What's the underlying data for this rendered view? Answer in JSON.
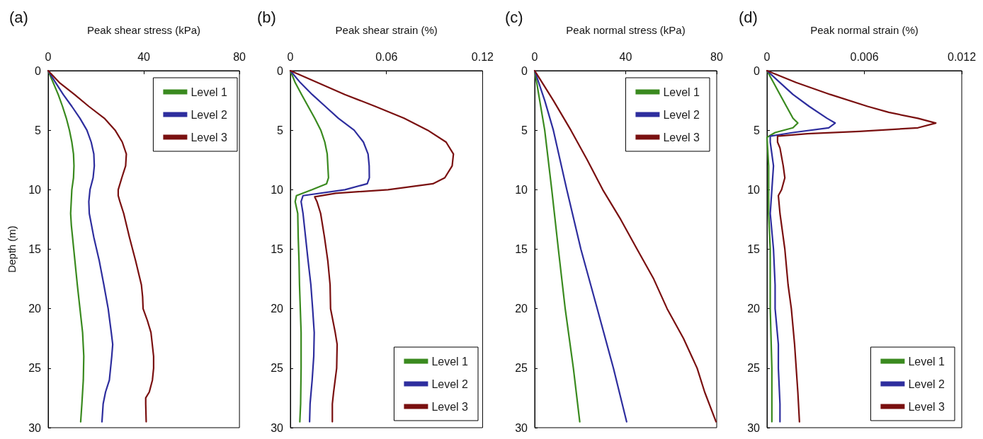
{
  "chart_data": [
    {
      "type": "line",
      "title": "(a)",
      "xlabel": "Peak shear stress (kPa)",
      "ylabel": "Depth (m)",
      "xlim": [
        0,
        80
      ],
      "xticks": [
        0,
        40,
        80
      ],
      "ylim": [
        30,
        0
      ],
      "yticks": [
        0,
        5,
        10,
        15,
        20,
        25,
        30
      ],
      "legend": "top right",
      "grid": false,
      "marker": "none",
      "series": [
        {
          "name": "Level 1",
          "color": "#3a8a1f",
          "x": [
            0,
            2.1,
            4.2,
            6,
            7.6,
            8.9,
            9.9,
            10.6,
            10.8,
            10.6,
            9.9,
            9.4,
            9.7,
            10.2,
            11.2,
            12.2,
            13.3,
            14.4,
            14.9,
            14.7,
            14.1,
            13.6
          ],
          "values": [
            0,
            1,
            2,
            3,
            4,
            5,
            6,
            7,
            8,
            9,
            10,
            12,
            13,
            14,
            16,
            18,
            20,
            22,
            24,
            26,
            28,
            29.5
          ]
        },
        {
          "name": "Level 2",
          "color": "#2e2e9e",
          "x": [
            0,
            3.1,
            6.3,
            9.9,
            13.3,
            16.2,
            18,
            19.1,
            19.3,
            18.8,
            17.5,
            17,
            17.2,
            19.1,
            21.4,
            23.3,
            25.1,
            26.4,
            27,
            26.6,
            25.6,
            24,
            23,
            22.5
          ],
          "values": [
            0,
            1,
            2,
            3,
            4,
            5,
            6,
            7,
            8,
            9,
            10,
            11,
            12,
            14,
            16,
            18,
            20,
            22,
            23,
            24,
            26,
            27,
            28,
            29.5
          ]
        },
        {
          "name": "Level 3",
          "color": "#7a1010",
          "x": [
            0,
            4.7,
            11,
            17,
            23.5,
            28,
            31,
            32.7,
            32.4,
            30.8,
            29.3,
            29.3,
            30,
            31.6,
            34,
            36.6,
            39,
            39.5,
            39.7,
            41.5,
            43,
            44.1,
            44.1,
            43.6,
            42.3,
            40.8,
            40.8,
            41
          ],
          "values": [
            0,
            1,
            2,
            3,
            4,
            5,
            6,
            7,
            8,
            9,
            10,
            10.5,
            11,
            12,
            14,
            16,
            18,
            19,
            20,
            21,
            22,
            24,
            25,
            26,
            27,
            27.5,
            28,
            29.5
          ]
        }
      ]
    },
    {
      "type": "line",
      "title": "(b)",
      "xlabel": "Peak shear strain (%)",
      "xlim": [
        0,
        0.12
      ],
      "xticks": [
        0,
        0.06,
        0.12
      ],
      "ylim": [
        30,
        0
      ],
      "yticks": [
        0,
        5,
        10,
        15,
        20,
        25,
        30
      ],
      "legend": "bottom right",
      "grid": false,
      "marker": "none",
      "series": [
        {
          "name": "Level 1",
          "color": "#3a8a1f",
          "x": [
            0,
            0.003,
            0.007,
            0.0111,
            0.0152,
            0.019,
            0.0215,
            0.023,
            0.0234,
            0.0238,
            0.0226,
            0.0136,
            0.0038,
            0.003,
            0.0046,
            0.0049,
            0.0054,
            0.0057,
            0.0062,
            0.0067,
            0.0067,
            0.0064,
            0.0059
          ],
          "values": [
            0,
            1,
            2,
            3,
            4,
            5,
            6,
            7,
            8,
            9,
            9.5,
            10,
            10.5,
            11,
            12,
            14,
            16,
            18,
            20,
            22,
            25,
            28,
            29.5
          ]
        },
        {
          "name": "Level 2",
          "color": "#2e2e9e",
          "x": [
            0,
            0.0062,
            0.0136,
            0.0218,
            0.03,
            0.0398,
            0.0456,
            0.0485,
            0.0492,
            0.0493,
            0.048,
            0.0341,
            0.0079,
            0.0067,
            0.0079,
            0.0095,
            0.0111,
            0.0128,
            0.0139,
            0.0149,
            0.0146,
            0.0136,
            0.0123,
            0.012
          ],
          "values": [
            0,
            1,
            2,
            3,
            4,
            5,
            6,
            7,
            8,
            9,
            9.5,
            10,
            10.5,
            11,
            12,
            14,
            16,
            18,
            20,
            22,
            24,
            26,
            28,
            29.5
          ]
        },
        {
          "name": "Level 3",
          "color": "#7a1010",
          "x": [
            0,
            0.0169,
            0.034,
            0.053,
            0.071,
            0.0857,
            0.0972,
            0.1018,
            0.101,
            0.0964,
            0.089,
            0.061,
            0.0284,
            0.0152,
            0.0166,
            0.0189,
            0.0213,
            0.0234,
            0.0248,
            0.0251,
            0.028,
            0.0292,
            0.0289,
            0.027,
            0.0262,
            0.0262
          ],
          "values": [
            0,
            1,
            2,
            3,
            4,
            5,
            6,
            7,
            8,
            9,
            9.5,
            10,
            10.3,
            10.6,
            11,
            12,
            14,
            16,
            18,
            20,
            22,
            23,
            25,
            27,
            28,
            29.5
          ]
        }
      ]
    },
    {
      "type": "line",
      "title": "(c)",
      "xlabel": "Peak normal stress (kPa)",
      "xlim": [
        0,
        80
      ],
      "xticks": [
        0,
        40,
        80
      ],
      "ylim": [
        30,
        0
      ],
      "yticks": [
        0,
        5,
        10,
        15,
        20,
        25,
        30
      ],
      "legend": "top right",
      "grid": false,
      "marker": "none",
      "series": [
        {
          "name": "Level 1",
          "color": "#3a8a1f",
          "x": [
            0,
            2.2,
            4.4,
            7.5,
            10.4,
            13.4,
            17,
            19.8
          ],
          "values": [
            0,
            2.5,
            5,
            10,
            15,
            20,
            25,
            29.5
          ]
        },
        {
          "name": "Level 2",
          "color": "#2e2e9e",
          "x": [
            0,
            4.4,
            8.2,
            14.1,
            20.3,
            27.5,
            34.6,
            40.4
          ],
          "values": [
            0,
            2.5,
            5,
            10,
            15,
            20,
            25,
            29.5
          ]
        },
        {
          "name": "Level 3",
          "color": "#7a1010",
          "x": [
            0,
            8.2,
            15.9,
            23.1,
            29.9,
            37.8,
            45,
            52.3,
            58.2,
            65.4,
            71.4,
            74.7,
            79.7
          ],
          "values": [
            0,
            2.5,
            5,
            7.5,
            10,
            12.5,
            15,
            17.5,
            20,
            22.5,
            25,
            27,
            29.5
          ]
        }
      ]
    },
    {
      "type": "line",
      "title": "(d)",
      "xlabel": "Peak normal strain (%)",
      "xlim": [
        0,
        0.012
      ],
      "xticks": [
        0,
        0.006,
        0.012
      ],
      "ylim": [
        30,
        0
      ],
      "yticks": [
        0,
        5,
        10,
        15,
        20,
        25,
        30
      ],
      "legend": "bottom right",
      "grid": false,
      "marker": "none",
      "series": [
        {
          "name": "Level 1",
          "color": "#3a8a1f",
          "x": [
            0,
            0.0004,
            0.0008,
            0.0012,
            0.0016,
            0.0019,
            0.0016,
            0.0005,
            0,
            0.0001,
            0.0001,
            0.0001,
            0.0002,
            0.0002,
            0.0003,
            0.0003
          ],
          "values": [
            0,
            1,
            2,
            3,
            4,
            4.4,
            4.8,
            5.2,
            5.6,
            8,
            10,
            12,
            15,
            20,
            25,
            29.5
          ]
        },
        {
          "name": "Level 2",
          "color": "#2e2e9e",
          "x": [
            0,
            0.0008,
            0.0016,
            0.0026,
            0.0037,
            0.0042,
            0.0038,
            0.0016,
            0.0002,
            0.0002,
            0.0004,
            0.0003,
            0.0002,
            0.0004,
            0.0005,
            0.0005,
            0.0007,
            0.0007,
            0.0008,
            0.0008
          ],
          "values": [
            0,
            1,
            2,
            3,
            4,
            4.4,
            4.8,
            5.2,
            5.5,
            6,
            8,
            10,
            12,
            15,
            18,
            20,
            23,
            25,
            28,
            29.5
          ]
        },
        {
          "name": "Level 3",
          "color": "#7a1010",
          "x": [
            0,
            0.0018,
            0.0039,
            0.0062,
            0.0075,
            0.0093,
            0.0104,
            0.0093,
            0.0057,
            0.0025,
            0.00065,
            0.00065,
            0.0008,
            0.001,
            0.0011,
            0.0009,
            0.0007,
            0.0008,
            0.0011,
            0.0013,
            0.0015,
            0.0017,
            0.0018,
            0.0019,
            0.002
          ],
          "values": [
            0,
            1,
            2,
            3,
            3.5,
            4,
            4.4,
            4.8,
            5.1,
            5.3,
            5.5,
            6,
            6.5,
            8,
            9,
            10,
            10.5,
            12,
            15,
            18,
            20,
            23,
            25,
            27,
            29.5
          ]
        }
      ]
    }
  ]
}
